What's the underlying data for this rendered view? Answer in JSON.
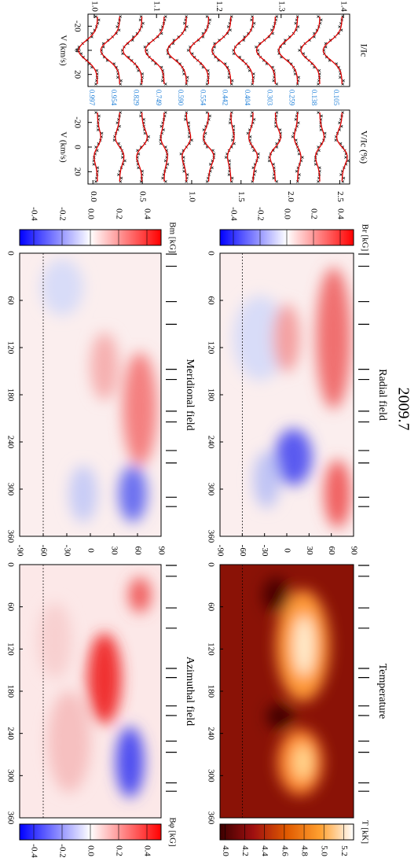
{
  "title": "2009.7",
  "profiles": {
    "phases": [
      "0.997",
      "0.954",
      "0.829",
      "0.749",
      "0.590",
      "0.554",
      "0.442",
      "0.404",
      "0.303",
      "0.259",
      "0.138",
      "0.105"
    ],
    "velocity_label": "V (km/s)",
    "vticks": [
      -20,
      0,
      20
    ],
    "vlim": [
      -30,
      30
    ],
    "intensity": {
      "label": "I/Ic",
      "lim": [
        0.99,
        1.41
      ],
      "ticks": [
        {
          "value": 1.0,
          "label": "1.0"
        },
        1.1,
        1.2,
        1.3,
        1.4
      ]
    },
    "stokes_v": {
      "label": "V/Ic (%)",
      "lim": [
        -0.05,
        2.6
      ],
      "ticks": [
        {
          "value": 0,
          "label": "0.0"
        },
        0.5,
        {
          "value": 1,
          "label": "1.0"
        },
        1.5,
        {
          "value": 2,
          "label": "2.0"
        },
        2.5
      ]
    }
  },
  "maps": {
    "longitude_lim": [
      0,
      360
    ],
    "longitude_ticks": [
      0,
      60,
      120,
      180,
      240,
      300,
      360
    ],
    "latitude_lim": [
      -90,
      90
    ],
    "latitude_ticks": [
      -90,
      -60,
      -30,
      0,
      30,
      60,
      90
    ],
    "dashed_latitude": -60,
    "panels": [
      {
        "title": "Radial field",
        "cbar_label": "Br [kG]",
        "clim": [
          -0.5,
          0.5
        ],
        "cbar_ticks": [
          -0.4,
          -0.2,
          {
            "value": 0,
            "label": "0.0"
          },
          0.2,
          0.4
        ],
        "colormap": [
          "#0000ff",
          "#ffffff",
          "#ff0000"
        ]
      },
      {
        "title": "Temperature",
        "cbar_label": "T [kK]",
        "clim": [
          3.95,
          5.3
        ],
        "cbar_ticks": [
          {
            "value": 4,
            "label": "4.0"
          },
          4.2,
          4.4,
          4.6,
          4.8,
          {
            "value": 5,
            "label": "5.0"
          },
          5.2
        ],
        "colormap": [
          "#3d0000",
          "#a01010",
          "#e05a00",
          "#ffa030",
          "#ffffff"
        ]
      },
      {
        "title": "Meridional field",
        "cbar_label": "Bm [kG]",
        "clim": [
          -0.5,
          0.5
        ],
        "cbar_ticks": [
          -0.4,
          -0.2,
          {
            "value": 0,
            "label": "0.0"
          },
          0.2,
          0.4
        ],
        "colormap": [
          "#0000ff",
          "#ffffff",
          "#ff0000"
        ]
      },
      {
        "title": "Azimuthal field",
        "cbar_label": "Bφ [kG]",
        "clim": [
          -0.5,
          0.5
        ],
        "cbar_ticks": [
          -0.4,
          -0.2,
          {
            "value": 0,
            "label": "0.0"
          },
          0.2,
          0.4
        ],
        "colormap": [
          "#0000ff",
          "#ffffff",
          "#ff0000"
        ]
      }
    ]
  }
}
